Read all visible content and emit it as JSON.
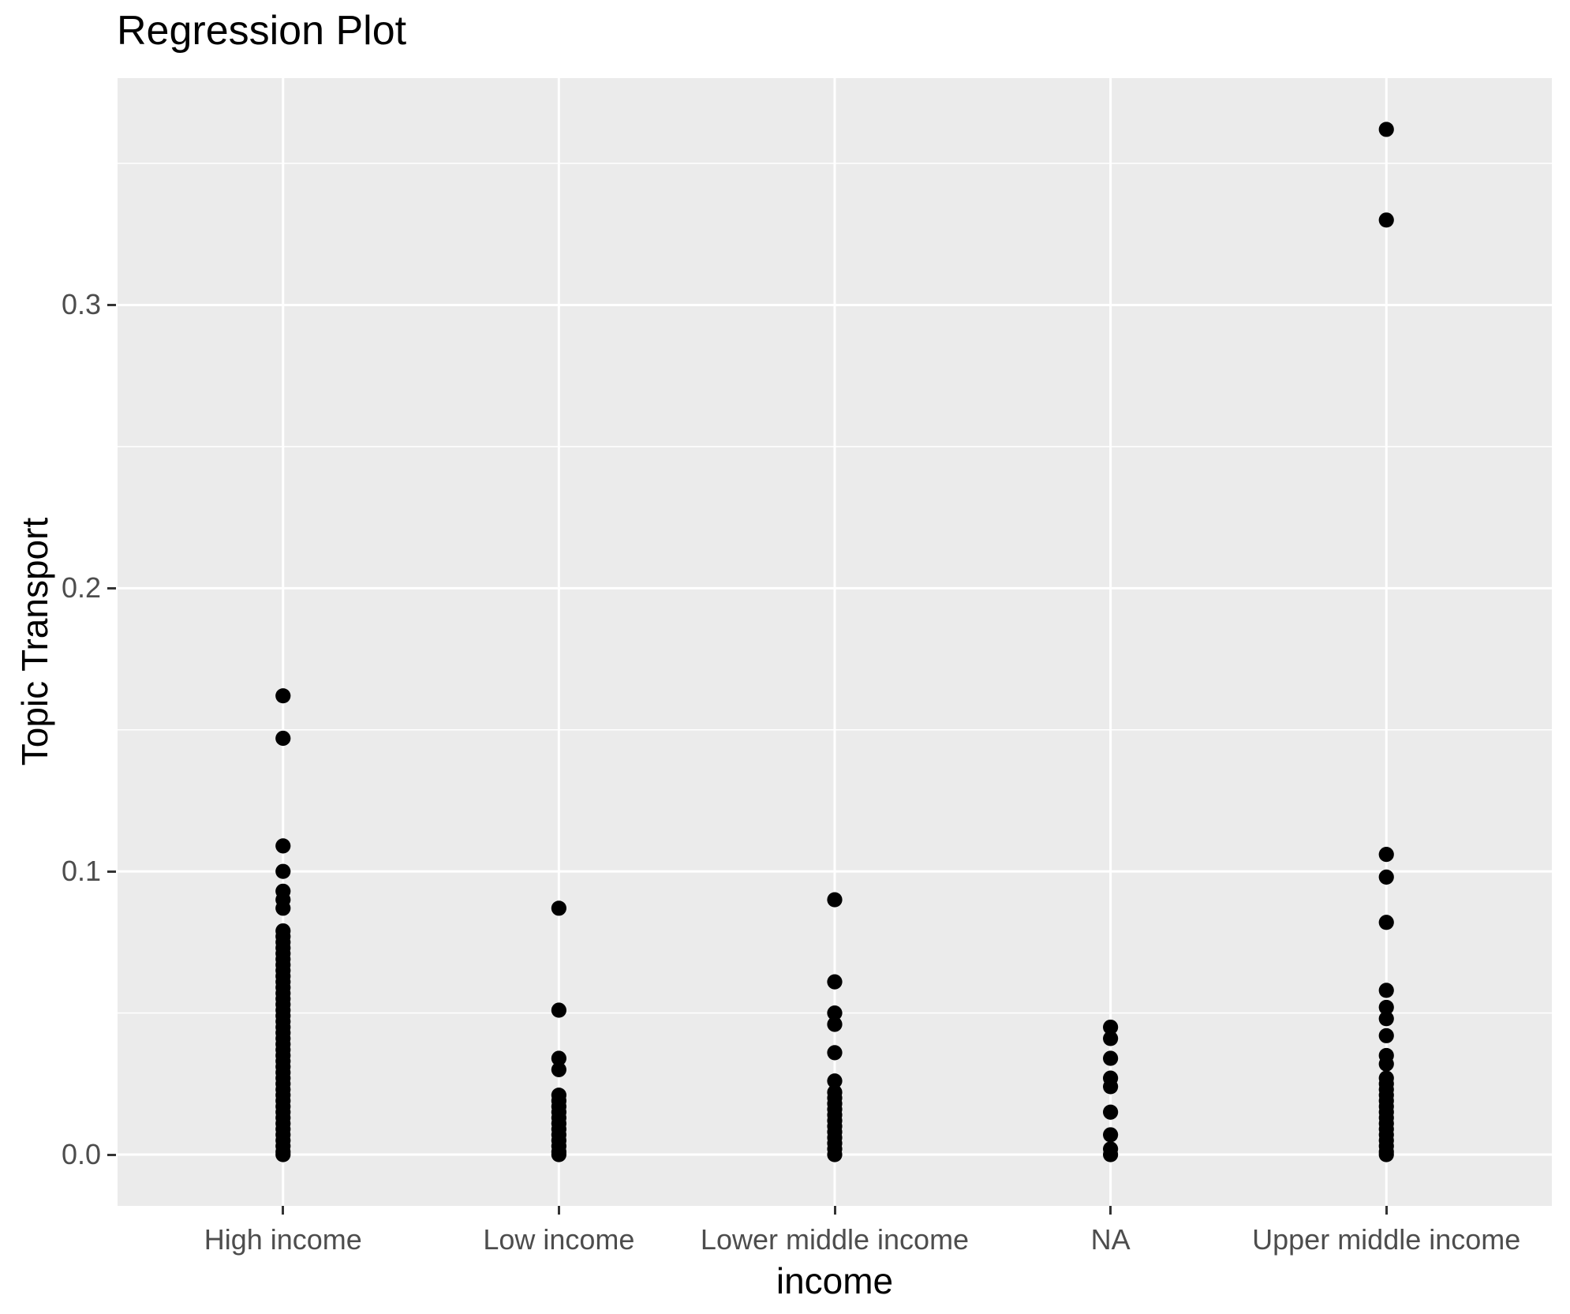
{
  "colors": {
    "panel_background": "#EBEBEB",
    "grid_line": "#FFFFFF",
    "point": "#000000",
    "tick_label": "#4D4D4D",
    "tick_mark": "#333333",
    "title_text": "#000000"
  },
  "chart_data": {
    "type": "scatter",
    "title": "Regression Plot",
    "xlabel": "income",
    "ylabel": "Topic Transport",
    "legend": "none",
    "grid": "white major and minor horizontal gridlines, white major vertical gridlines on grey panel",
    "categories": [
      "High income",
      "Low income",
      "Lower middle income",
      "NA",
      "Upper middle income"
    ],
    "y_ticks": [
      0.0,
      0.1,
      0.2,
      0.3
    ],
    "y_tick_labels": [
      "0.0",
      "0.1",
      "0.2",
      "0.3"
    ],
    "y_minor_ticks": [
      0.05,
      0.15,
      0.25,
      0.35
    ],
    "ylim": [
      -0.0181,
      0.3801
    ],
    "point_radius_px": 9.6,
    "series": [
      {
        "name": "High income",
        "values": [
          0.162,
          0.147,
          0.109,
          0.1,
          0.093,
          0.09,
          0.087,
          0.079,
          0.077,
          0.075,
          0.073,
          0.071,
          0.069,
          0.067,
          0.065,
          0.063,
          0.061,
          0.059,
          0.057,
          0.055,
          0.053,
          0.051,
          0.049,
          0.047,
          0.045,
          0.043,
          0.041,
          0.039,
          0.037,
          0.035,
          0.033,
          0.031,
          0.029,
          0.027,
          0.025,
          0.023,
          0.021,
          0.019,
          0.017,
          0.015,
          0.013,
          0.011,
          0.009,
          0.007,
          0.005,
          0.003,
          0.001,
          0.0
        ]
      },
      {
        "name": "Low income",
        "values": [
          0.087,
          0.051,
          0.034,
          0.03,
          0.021,
          0.019,
          0.017,
          0.015,
          0.013,
          0.011,
          0.009,
          0.007,
          0.005,
          0.003,
          0.001,
          0.0
        ]
      },
      {
        "name": "Lower middle income",
        "values": [
          0.09,
          0.061,
          0.05,
          0.046,
          0.036,
          0.026,
          0.022,
          0.02,
          0.018,
          0.016,
          0.014,
          0.012,
          0.01,
          0.008,
          0.006,
          0.004,
          0.002,
          0.0
        ]
      },
      {
        "name": "NA",
        "values": [
          0.045,
          0.041,
          0.034,
          0.027,
          0.024,
          0.015,
          0.007,
          0.002,
          0.0
        ]
      },
      {
        "name": "Upper middle income",
        "values": [
          0.362,
          0.33,
          0.106,
          0.098,
          0.082,
          0.058,
          0.052,
          0.048,
          0.042,
          0.035,
          0.032,
          0.027,
          0.025,
          0.023,
          0.021,
          0.019,
          0.017,
          0.015,
          0.013,
          0.011,
          0.009,
          0.007,
          0.005,
          0.003,
          0.001,
          0.0
        ]
      }
    ]
  }
}
